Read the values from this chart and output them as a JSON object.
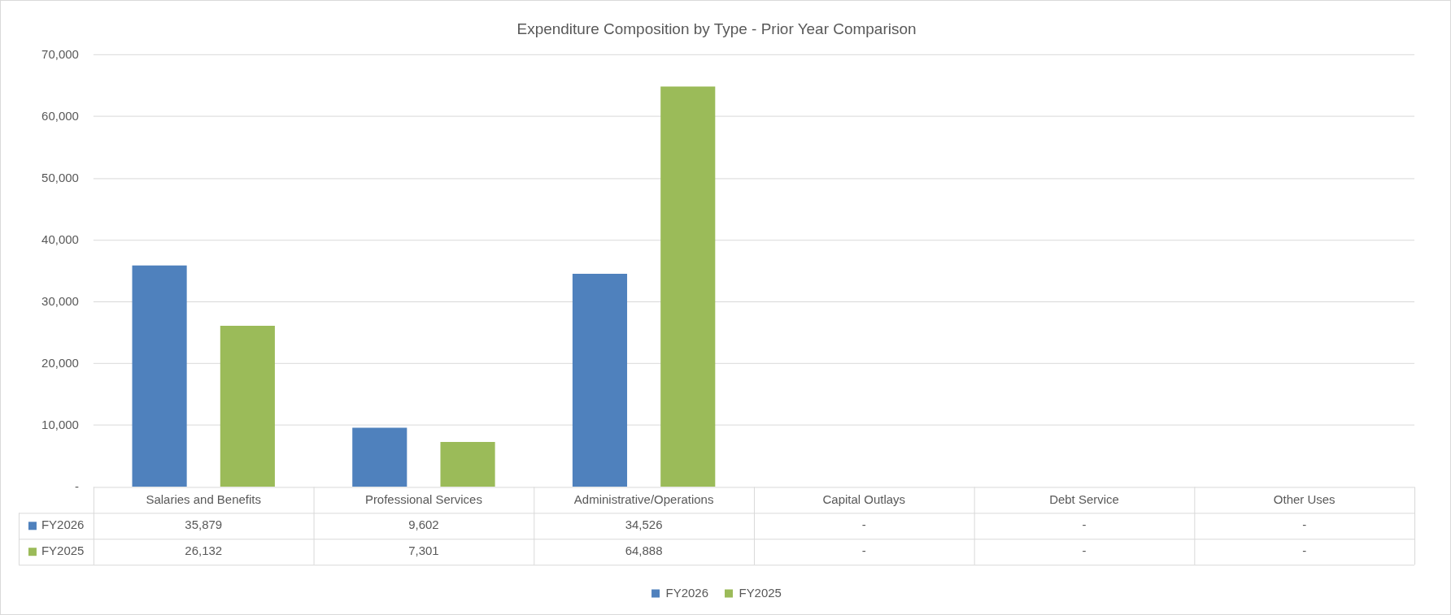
{
  "chart_data": {
    "type": "bar",
    "title": "Expenditure Composition by Type - Prior Year Comparison",
    "categories": [
      "Salaries and Benefits",
      "Professional Services",
      "Administrative/Operations",
      "Capital Outlays",
      "Debt Service",
      "Other Uses"
    ],
    "series": [
      {
        "name": "FY2026",
        "color": "#4f81bd",
        "values": [
          35879,
          9602,
          34526,
          0,
          0,
          0
        ],
        "value_labels": [
          "35,879",
          "9,602",
          "34,526",
          "-",
          "-",
          "-"
        ]
      },
      {
        "name": "FY2025",
        "color": "#9bbb59",
        "values": [
          26132,
          7301,
          64888,
          0,
          0,
          0
        ],
        "value_labels": [
          "26,132",
          "7,301",
          "64,888",
          "-",
          "-",
          "-"
        ]
      }
    ],
    "ylim": [
      0,
      70000
    ],
    "yticks": [
      {
        "value": 0,
        "label": "-"
      },
      {
        "value": 10000,
        "label": "10,000"
      },
      {
        "value": 20000,
        "label": "20,000"
      },
      {
        "value": 30000,
        "label": "30,000"
      },
      {
        "value": 40000,
        "label": "40,000"
      },
      {
        "value": 50000,
        "label": "50,000"
      },
      {
        "value": 60000,
        "label": "60,000"
      },
      {
        "value": 70000,
        "label": "70,000"
      }
    ],
    "grid": "y",
    "legend": "bottom"
  }
}
